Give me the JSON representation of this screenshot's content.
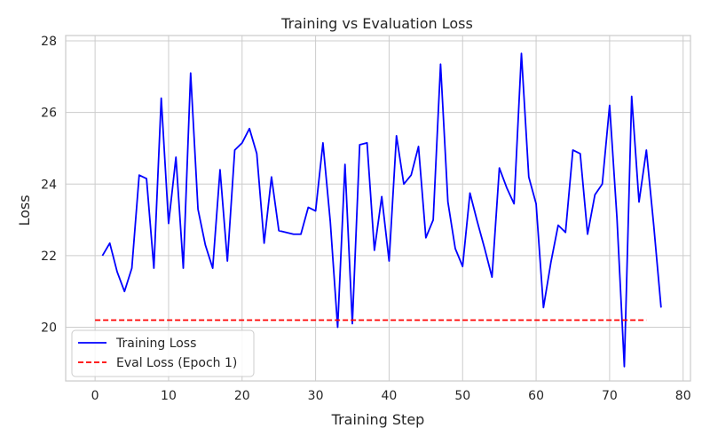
{
  "chart_data": {
    "type": "line",
    "title": "Training vs Evaluation Loss",
    "xlabel": "Training Step",
    "ylabel": "Loss",
    "xlim": [
      -4,
      81
    ],
    "ylim": [
      18.5,
      28.15
    ],
    "xticks": [
      0,
      10,
      20,
      30,
      40,
      50,
      60,
      70,
      80
    ],
    "yticks": [
      20,
      22,
      24,
      26,
      28
    ],
    "grid": true,
    "legend": "bottom-left",
    "series": [
      {
        "name": "Training Loss",
        "color": "#0000ff",
        "style": "solid",
        "x": [
          1,
          2,
          3,
          4,
          5,
          6,
          7,
          8,
          9,
          10,
          11,
          12,
          13,
          14,
          15,
          16,
          17,
          18,
          19,
          20,
          21,
          22,
          23,
          24,
          25,
          26,
          27,
          28,
          29,
          30,
          31,
          32,
          33,
          34,
          35,
          36,
          37,
          38,
          39,
          40,
          41,
          42,
          43,
          44,
          45,
          46,
          47,
          48,
          49,
          50,
          51,
          52,
          53,
          54,
          55,
          56,
          57,
          58,
          59,
          60,
          61,
          62,
          63,
          64,
          65,
          66,
          67,
          68,
          69,
          70,
          71,
          72,
          73,
          74,
          75,
          76,
          77
        ],
        "y": [
          22.0,
          22.35,
          21.55,
          21.0,
          21.65,
          24.25,
          24.15,
          21.65,
          26.4,
          22.9,
          24.75,
          21.65,
          27.1,
          23.3,
          22.3,
          21.65,
          24.4,
          21.85,
          24.95,
          25.15,
          25.55,
          24.85,
          22.35,
          24.2,
          22.7,
          22.65,
          22.6,
          22.6,
          23.35,
          23.25,
          25.15,
          22.95,
          20.0,
          24.55,
          20.1,
          25.1,
          25.15,
          22.15,
          23.65,
          21.85,
          25.35,
          24.0,
          24.25,
          25.05,
          22.5,
          23.0,
          27.35,
          23.5,
          22.2,
          21.7,
          23.75,
          22.95,
          22.2,
          21.4,
          24.45,
          23.9,
          23.45,
          27.65,
          24.2,
          23.45,
          20.55,
          21.8,
          22.85,
          22.65,
          24.95,
          24.85,
          22.6,
          23.7,
          24.0,
          26.2,
          23.05,
          18.9,
          26.45,
          23.5,
          24.95,
          22.85,
          20.55
        ]
      },
      {
        "name": "Eval Loss (Epoch 1)",
        "color": "#ff0000",
        "style": "dashed",
        "x": [
          0,
          75
        ],
        "y": [
          20.2,
          20.2
        ]
      }
    ]
  }
}
